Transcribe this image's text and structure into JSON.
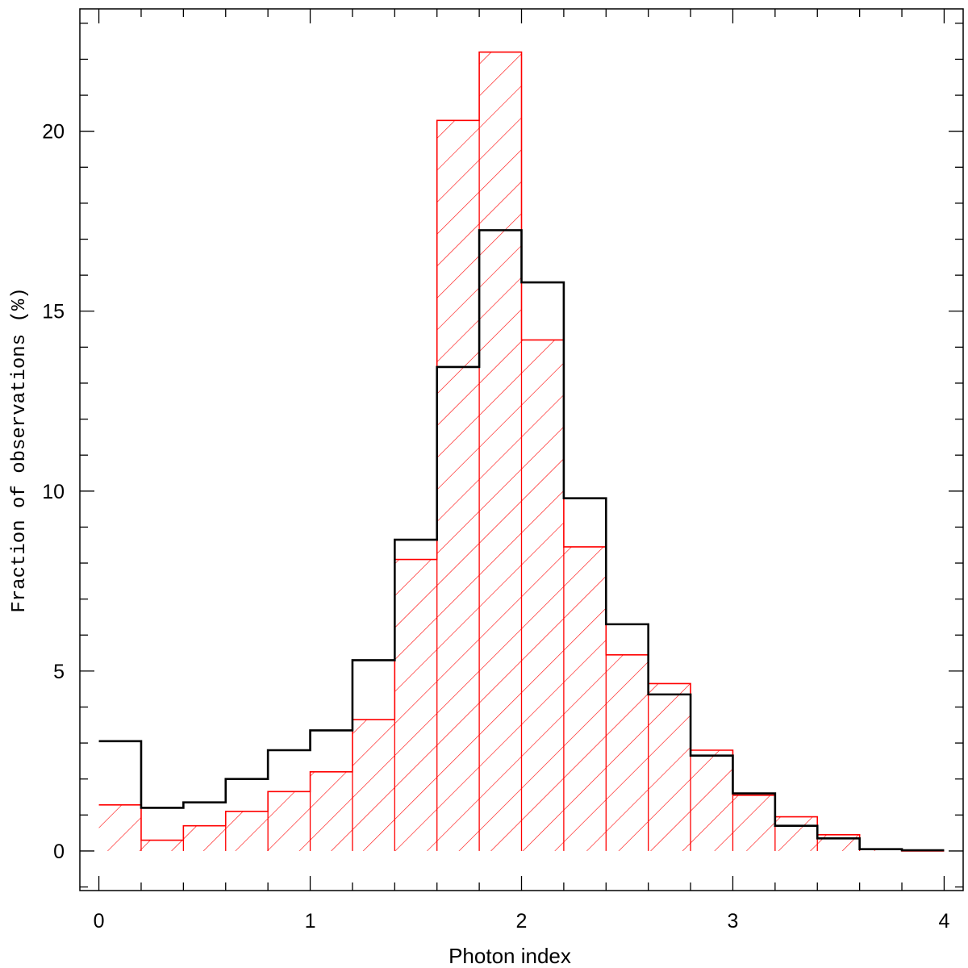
{
  "chart_data": {
    "type": "bar",
    "xlabel": "Photon index",
    "ylabel": "Fraction of observations (%)",
    "xlim": [
      -0.09,
      4.09
    ],
    "ylim": [
      -1.1,
      23.4
    ],
    "xticks": [
      0,
      1,
      2,
      3,
      4
    ],
    "yticks": [
      0,
      5,
      10,
      15,
      20
    ],
    "bin_edges": [
      0,
      0.2,
      0.4,
      0.6,
      0.8,
      1.0,
      1.2,
      1.4,
      1.6,
      1.8,
      2.0,
      2.2,
      2.4,
      2.6,
      2.8,
      3.0,
      3.2,
      3.4,
      3.6,
      3.8,
      4.0
    ],
    "series": [
      {
        "style": "black step outline",
        "color": "#000000",
        "values": [
          3.05,
          1.2,
          1.35,
          2.0,
          2.8,
          3.35,
          5.3,
          8.65,
          13.45,
          17.25,
          15.8,
          9.8,
          6.3,
          4.35,
          2.65,
          1.6,
          0.7,
          0.35,
          0.05,
          0.02
        ]
      },
      {
        "style": "red hatched step",
        "color": "#ff0000",
        "values": [
          1.28,
          0.3,
          0.7,
          1.1,
          1.65,
          2.2,
          3.65,
          8.1,
          20.3,
          22.2,
          14.2,
          8.45,
          5.45,
          4.65,
          2.8,
          1.55,
          0.95,
          0.45,
          0.05,
          0.0
        ]
      }
    ]
  }
}
